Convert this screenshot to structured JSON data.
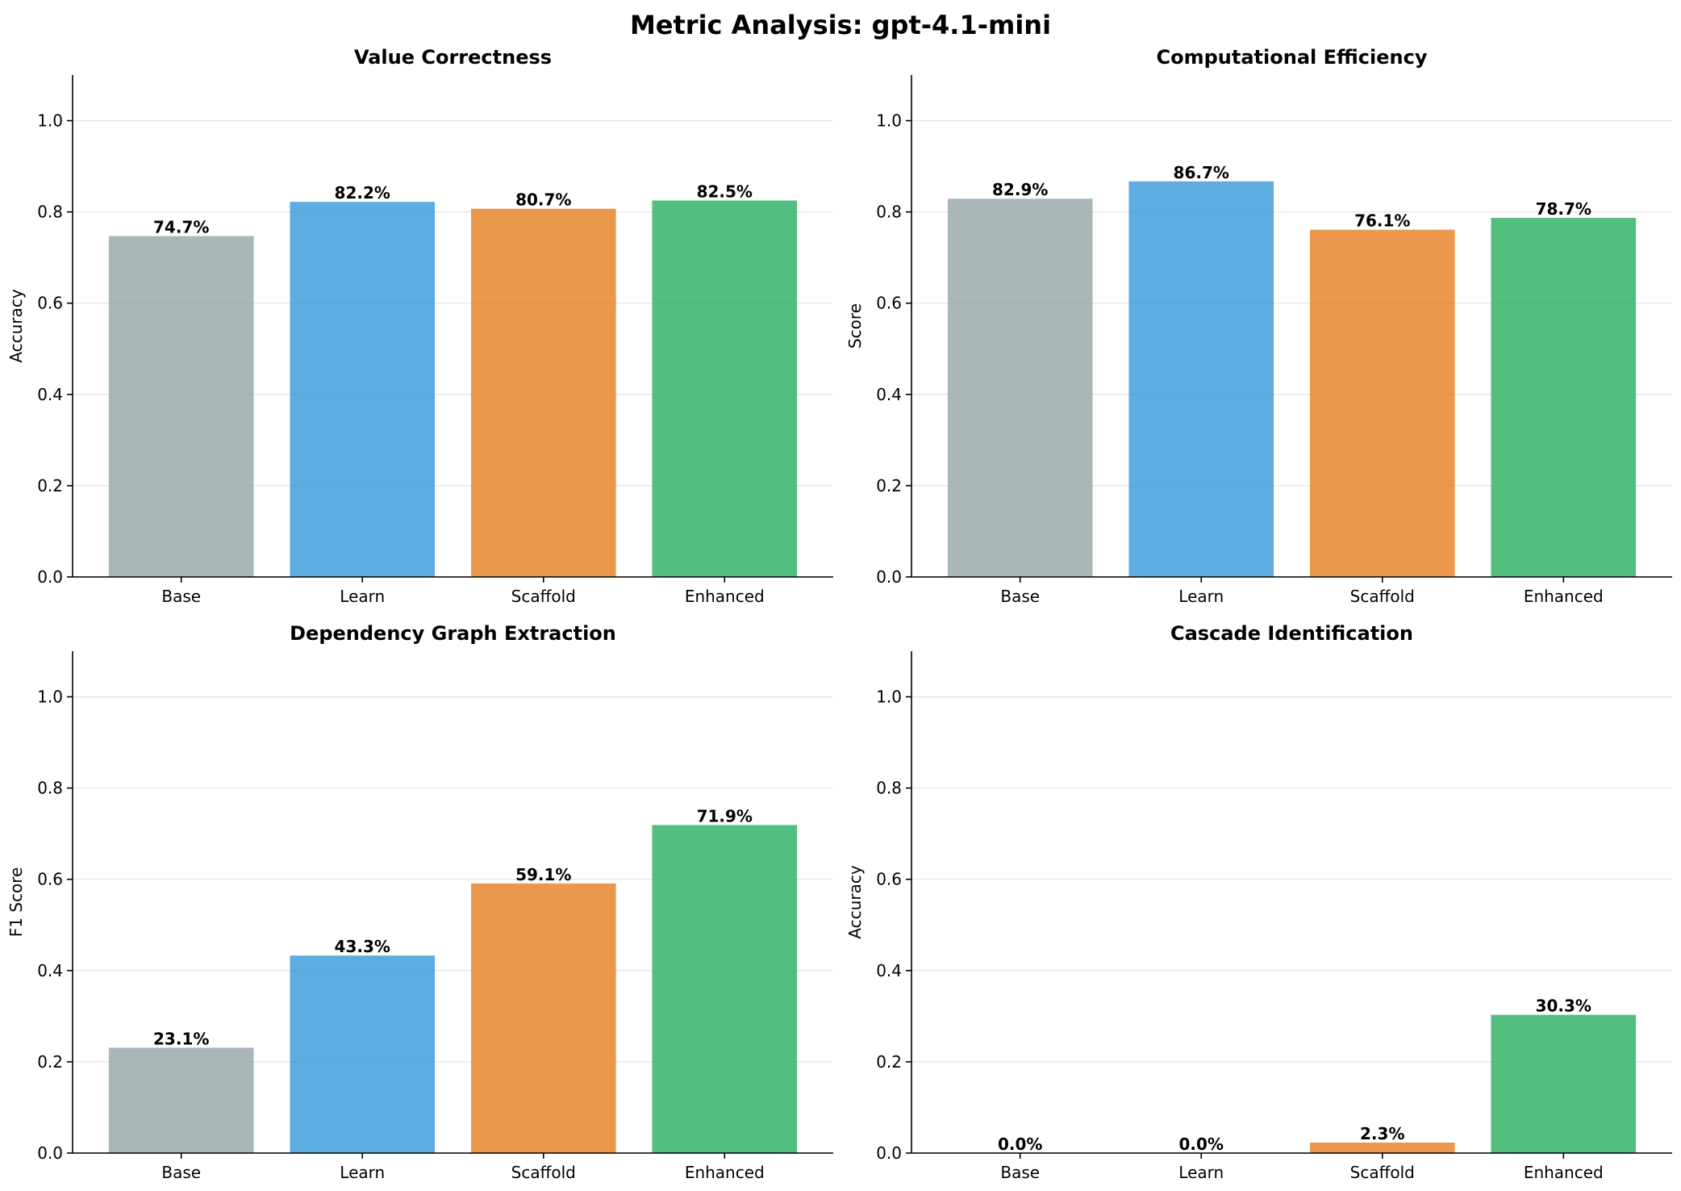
{
  "title": "Metric Analysis: gpt-4.1-mini",
  "colors": {
    "Base": "#95a5a6",
    "Learn": "#3498db",
    "Scaffold": "#e67e22",
    "Enhanced": "#27ae60"
  },
  "chart_data": [
    {
      "type": "bar",
      "title": "Value Correctness",
      "ylabel": "Accuracy",
      "categories": [
        "Base",
        "Learn",
        "Scaffold",
        "Enhanced"
      ],
      "values": [
        0.747,
        0.822,
        0.807,
        0.825
      ],
      "labels": [
        "74.7%",
        "82.2%",
        "80.7%",
        "82.5%"
      ],
      "ylim": [
        0,
        1.1
      ],
      "yticks": [
        0.0,
        0.2,
        0.4,
        0.6,
        0.8,
        1.0
      ],
      "ytick_labels": [
        "0.0",
        "0.2",
        "0.4",
        "0.6",
        "0.8",
        "1.0"
      ],
      "grid": "y"
    },
    {
      "type": "bar",
      "title": "Computational Efficiency",
      "ylabel": "Score",
      "categories": [
        "Base",
        "Learn",
        "Scaffold",
        "Enhanced"
      ],
      "values": [
        0.829,
        0.867,
        0.761,
        0.787
      ],
      "labels": [
        "82.9%",
        "86.7%",
        "76.1%",
        "78.7%"
      ],
      "ylim": [
        0,
        1.1
      ],
      "yticks": [
        0.0,
        0.2,
        0.4,
        0.6,
        0.8,
        1.0
      ],
      "ytick_labels": [
        "0.0",
        "0.2",
        "0.4",
        "0.6",
        "0.8",
        "1.0"
      ],
      "grid": "y"
    },
    {
      "type": "bar",
      "title": "Dependency Graph Extraction",
      "ylabel": "F1 Score",
      "categories": [
        "Base",
        "Learn",
        "Scaffold",
        "Enhanced"
      ],
      "values": [
        0.231,
        0.433,
        0.591,
        0.719
      ],
      "labels": [
        "23.1%",
        "43.3%",
        "59.1%",
        "71.9%"
      ],
      "ylim": [
        0,
        1.1
      ],
      "yticks": [
        0.0,
        0.2,
        0.4,
        0.6,
        0.8,
        1.0
      ],
      "ytick_labels": [
        "0.0",
        "0.2",
        "0.4",
        "0.6",
        "0.8",
        "1.0"
      ],
      "grid": "y"
    },
    {
      "type": "bar",
      "title": "Cascade Identification",
      "ylabel": "Accuracy",
      "categories": [
        "Base",
        "Learn",
        "Scaffold",
        "Enhanced"
      ],
      "values": [
        0.0,
        0.0,
        0.023,
        0.303
      ],
      "labels": [
        "0.0%",
        "0.0%",
        "2.3%",
        "30.3%"
      ],
      "ylim": [
        0,
        1.1
      ],
      "yticks": [
        0.0,
        0.2,
        0.4,
        0.6,
        0.8,
        1.0
      ],
      "ytick_labels": [
        "0.0",
        "0.2",
        "0.4",
        "0.6",
        "0.8",
        "1.0"
      ],
      "grid": "y"
    }
  ]
}
